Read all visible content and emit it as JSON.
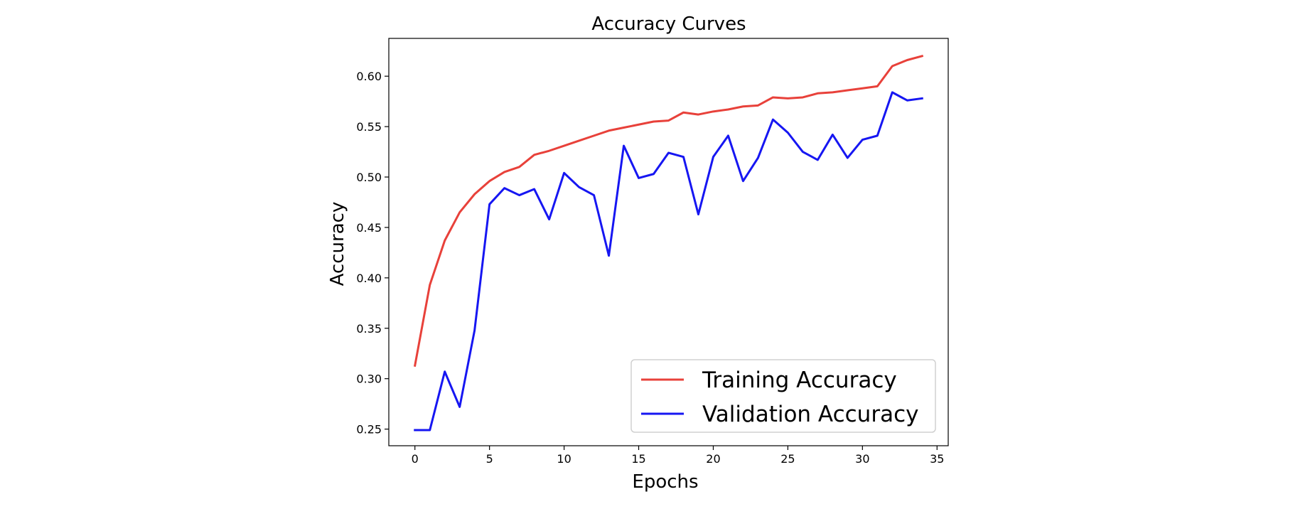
{
  "chart_data": {
    "type": "line",
    "title": "Accuracy Curves",
    "xlabel": "Epochs",
    "ylabel": "Accuracy",
    "xlim": [
      -1.75,
      35.75
    ],
    "ylim": [
      0.2335,
      0.6375
    ],
    "xticks": [
      "0",
      "5",
      "10",
      "15",
      "20",
      "25",
      "30",
      "35"
    ],
    "yticks": [
      "0.25",
      "0.30",
      "0.35",
      "0.40",
      "0.45",
      "0.50",
      "0.55",
      "0.60"
    ],
    "grid": false,
    "legend_position": "lower-right",
    "x": [
      0,
      1,
      2,
      3,
      4,
      5,
      6,
      7,
      8,
      9,
      10,
      11,
      12,
      13,
      14,
      15,
      16,
      17,
      18,
      19,
      20,
      21,
      22,
      23,
      24,
      25,
      26,
      27,
      28,
      29,
      30,
      31,
      32,
      33,
      34
    ],
    "series": [
      {
        "name": "Training Accuracy",
        "color": "#e8413a",
        "values": [
          0.313,
          0.393,
          0.437,
          0.465,
          0.483,
          0.496,
          0.505,
          0.51,
          0.522,
          0.526,
          0.531,
          0.536,
          0.541,
          0.546,
          0.549,
          0.552,
          0.555,
          0.556,
          0.564,
          0.562,
          0.565,
          0.567,
          0.57,
          0.571,
          0.579,
          0.578,
          0.579,
          0.583,
          0.584,
          0.586,
          0.588,
          0.59,
          0.61,
          0.616,
          0.62
        ]
      },
      {
        "name": "Validation Accuracy",
        "color": "#1616f2",
        "values": [
          0.249,
          0.249,
          0.307,
          0.272,
          0.348,
          0.473,
          0.489,
          0.482,
          0.488,
          0.458,
          0.504,
          0.49,
          0.482,
          0.422,
          0.531,
          0.499,
          0.503,
          0.524,
          0.52,
          0.463,
          0.52,
          0.541,
          0.496,
          0.519,
          0.557,
          0.544,
          0.525,
          0.517,
          0.542,
          0.519,
          0.537,
          0.541,
          0.584,
          0.576,
          0.578
        ]
      }
    ]
  }
}
